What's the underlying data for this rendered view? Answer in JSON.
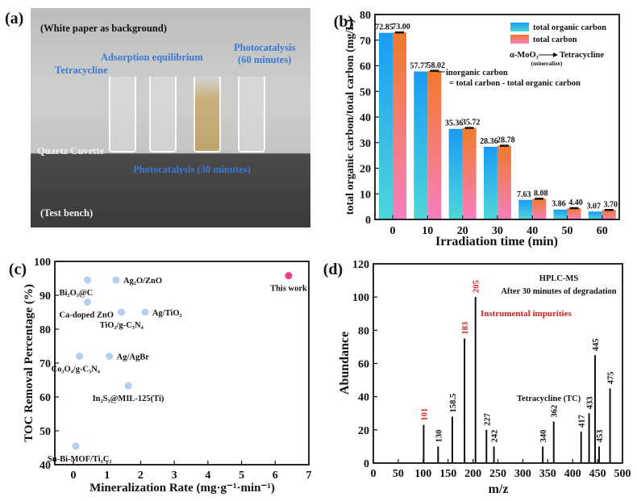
{
  "panel_a": {
    "label": "(a)",
    "background_note": "(White paper as background)",
    "tetracycline": "Tetracycline",
    "adsorption": "Adsorption equilibrium",
    "photo60_line1": "Photocatalysis",
    "photo60_line2": "(60 minutes)",
    "quartz": "Quartz Cuvette",
    "photo30": "Photocatalysis (30 minutes)",
    "bench": "(Test bench)"
  },
  "chart_data": [
    {
      "panel": "(b)",
      "type": "bar",
      "xlabel": "Irradiation time (min)",
      "ylabel": "total organic carbon/total carbon (mg/L)",
      "ylim": [
        0,
        80
      ],
      "yticks": [
        0,
        10,
        20,
        30,
        40,
        50,
        60,
        70,
        80
      ],
      "categories": [
        "0",
        "10",
        "20",
        "30",
        "40",
        "50",
        "60"
      ],
      "series": [
        {
          "name": "total organic carbon",
          "values": [
            72.85,
            57.77,
            35.36,
            28.36,
            7.63,
            3.86,
            3.07
          ],
          "labels": [
            "72.85",
            "57.77",
            "35.36",
            "28.36",
            "7.63",
            "3.86",
            "3.07"
          ],
          "color_top": "#1a9bf5",
          "color_bottom": "#4fd6d8"
        },
        {
          "name": "total carbon",
          "values": [
            73.0,
            58.02,
            35.72,
            28.78,
            8.08,
            4.4,
            3.7
          ],
          "labels": [
            "73.00",
            "58.02",
            "35.72",
            "28.78",
            "8.08",
            "4.40",
            "3.70"
          ],
          "color_top": "#f07a2a",
          "color_bottom": "#f77fc0"
        }
      ],
      "legend_position": "top-right",
      "annotations": {
        "reaction_left": "α-MoO₃",
        "reaction_right": "Tetracycline",
        "reaction_sub": "(mineralize)",
        "ic_line1": "inorganic carbon",
        "ic_line2": "= total carbon - total organic carbon"
      }
    },
    {
      "panel": "(c)",
      "type": "scatter",
      "xlabel": "Mineralization Rate (mg·g⁻¹·min⁻¹)",
      "ylabel": "TOC Removal Percentage (%)",
      "xlim": [
        -0.55,
        7
      ],
      "ylim": [
        40,
        100
      ],
      "xticks": [
        0,
        1,
        2,
        3,
        4,
        5,
        6,
        7
      ],
      "yticks": [
        40,
        50,
        60,
        70,
        80,
        90,
        100
      ],
      "points": [
        {
          "label": "Bi₂O₃@C",
          "x": 0.42,
          "y": 94.5,
          "anchor": "below-left"
        },
        {
          "label": "Ag₂O/ZnO",
          "x": 1.27,
          "y": 94.5,
          "anchor": "right"
        },
        {
          "label": "Ca-doped ZnO",
          "x": 0.42,
          "y": 88,
          "anchor": "below-left"
        },
        {
          "label": "TiO₂/g-C₃N₄",
          "x": 1.43,
          "y": 85,
          "anchor": "below"
        },
        {
          "label": "Ag/TiO₂",
          "x": 2.13,
          "y": 85,
          "anchor": "right"
        },
        {
          "label": "Co₃O₄/g-C₃N₄",
          "x": 0.18,
          "y": 72,
          "anchor": "below-left"
        },
        {
          "label": "Ag/AgBr",
          "x": 1.07,
          "y": 72,
          "anchor": "right"
        },
        {
          "label": "In₂S₃@MIL-125(Ti)",
          "x": 1.63,
          "y": 63.3,
          "anchor": "below"
        },
        {
          "label": "Sn-Bi-MOF/Ti₃C₂",
          "x": 0.07,
          "y": 45.5,
          "anchor": "below-left"
        },
        {
          "label": "This work",
          "x": 6.4,
          "y": 95.8,
          "anchor": "below",
          "highlight": true
        }
      ],
      "point_color": "#b5cff2",
      "highlight_color": "#ee3e96"
    },
    {
      "panel": "(d)",
      "type": "bar",
      "subtype": "mass-spectrum",
      "xlabel": "m/z",
      "ylabel": "Abundance",
      "xlim": [
        0,
        500
      ],
      "ylim": [
        0,
        120
      ],
      "xticks": [
        0,
        50,
        100,
        150,
        200,
        250,
        300,
        350,
        400,
        450,
        500
      ],
      "yticks": [
        0,
        20,
        40,
        60,
        80,
        100,
        120
      ],
      "peaks": [
        {
          "mz": 101,
          "label": "101",
          "abundance": 23,
          "impurity": true
        },
        {
          "mz": 130,
          "label": "130",
          "abundance": 10
        },
        {
          "mz": 158.5,
          "label": "158.5",
          "abundance": 28
        },
        {
          "mz": 183,
          "label": "183",
          "abundance": 75,
          "impurity": true
        },
        {
          "mz": 205,
          "label": "205",
          "abundance": 100,
          "impurity": true
        },
        {
          "mz": 227,
          "label": "227",
          "abundance": 20
        },
        {
          "mz": 242,
          "label": "242",
          "abundance": 10
        },
        {
          "mz": 340,
          "label": "340",
          "abundance": 10
        },
        {
          "mz": 362,
          "label": "362",
          "abundance": 25
        },
        {
          "mz": 417,
          "label": "417",
          "abundance": 19
        },
        {
          "mz": 433,
          "label": "433",
          "abundance": 30
        },
        {
          "mz": 445,
          "label": "445",
          "abundance": 65
        },
        {
          "mz": 453,
          "label": "453",
          "abundance": 10
        },
        {
          "mz": 475,
          "label": "475",
          "abundance": 45
        }
      ],
      "annotations": {
        "title1": "HPLC-MS",
        "title2": "After 30 minutes of degradation",
        "impurities": "Instrumental impurities",
        "tc": "Tetracycline (TC)"
      },
      "impurity_color": "#d42020"
    }
  ]
}
